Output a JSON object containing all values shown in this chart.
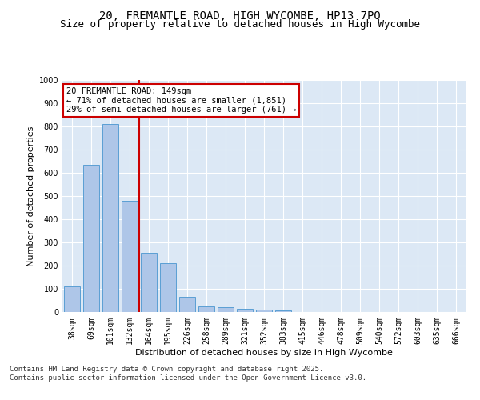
{
  "title1": "20, FREMANTLE ROAD, HIGH WYCOMBE, HP13 7PQ",
  "title2": "Size of property relative to detached houses in High Wycombe",
  "xlabel": "Distribution of detached houses by size in High Wycombe",
  "ylabel": "Number of detached properties",
  "categories": [
    "38sqm",
    "69sqm",
    "101sqm",
    "132sqm",
    "164sqm",
    "195sqm",
    "226sqm",
    "258sqm",
    "289sqm",
    "321sqm",
    "352sqm",
    "383sqm",
    "415sqm",
    "446sqm",
    "478sqm",
    "509sqm",
    "540sqm",
    "572sqm",
    "603sqm",
    "635sqm",
    "666sqm"
  ],
  "values": [
    110,
    635,
    810,
    480,
    255,
    210,
    65,
    25,
    20,
    13,
    10,
    8,
    0,
    0,
    0,
    0,
    0,
    0,
    0,
    0,
    0
  ],
  "bar_color": "#aec6e8",
  "bar_edge_color": "#5a9fd4",
  "vline_color": "#cc0000",
  "annotation_text": "20 FREMANTLE ROAD: 149sqm\n← 71% of detached houses are smaller (1,851)\n29% of semi-detached houses are larger (761) →",
  "annotation_box_color": "#cc0000",
  "background_color": "#dce8f5",
  "grid_color": "#ffffff",
  "ylim": [
    0,
    1000
  ],
  "yticks": [
    0,
    100,
    200,
    300,
    400,
    500,
    600,
    700,
    800,
    900,
    1000
  ],
  "footer_text": "Contains HM Land Registry data © Crown copyright and database right 2025.\nContains public sector information licensed under the Open Government Licence v3.0.",
  "title_fontsize": 10,
  "subtitle_fontsize": 9,
  "axis_label_fontsize": 8,
  "tick_fontsize": 7,
  "footer_fontsize": 6.5,
  "annotation_fontsize": 7.5
}
